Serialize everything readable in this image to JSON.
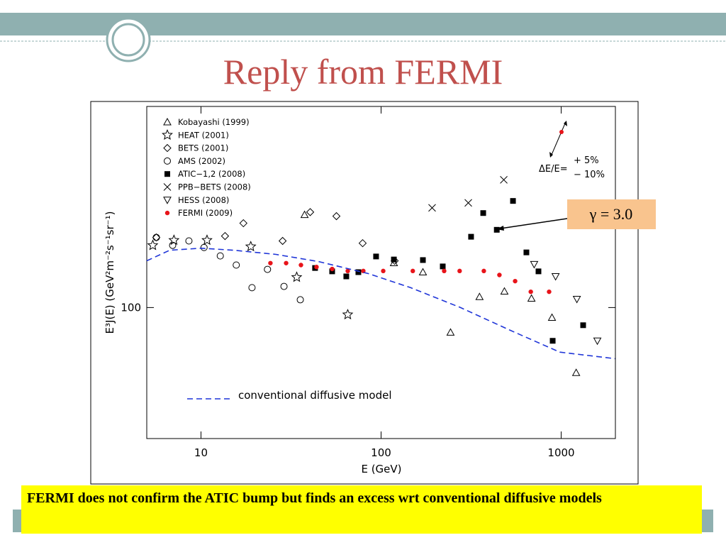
{
  "title": "Reply from FERMI",
  "caption": "FERMI does not confirm the ATIC bump but finds an excess wrt conventional diffusive models",
  "chart_data": {
    "type": "scatter",
    "x_label": "E (GeV)",
    "y_label": "E³J(E) (GeV²m⁻²s⁻¹sr⁻¹)",
    "x_log": true,
    "y_log": true,
    "xlim": [
      5,
      2000
    ],
    "ylim": [
      57,
      237
    ],
    "xticks": [
      10,
      100,
      1000
    ],
    "yticks": [
      100
    ],
    "legend": "upper left",
    "resolution_label": "ΔE/E=",
    "resolution_plus": "+ 5%",
    "resolution_minus": "− 10%",
    "callout": "γ = 3.0",
    "callout_color": "#f9c48e",
    "series": [
      {
        "name": "Kobayashi (1999)",
        "marker": "triangle",
        "color": "#000000",
        "x": [
          37.6,
          117.8,
          170.7,
          243,
          352,
          484,
          684,
          889,
          1211
        ],
        "values": [
          148.9,
          121.1,
          116.4,
          89.9,
          104.7,
          107.2,
          104.0,
          95.8,
          75.6
        ]
      },
      {
        "name": "HEAT (2001)",
        "marker": "star",
        "color": "#000000",
        "x": [
          5.4,
          7.08,
          10.8,
          18.9,
          34.0,
          65.3
        ],
        "values": [
          130.6,
          133.5,
          133.5,
          129.9,
          113.9,
          97.0
        ]
      },
      {
        "name": "BETS (2001)",
        "marker": "diamond",
        "color": "#000000",
        "x": [
          5.65,
          13.6,
          17.2,
          28.4,
          40.4,
          56.5,
          79.0,
          119
        ],
        "values": [
          135.1,
          135.9,
          143.6,
          133.1,
          150.6,
          148,
          131.8,
          122.2
        ]
      },
      {
        "name": "AMS (2002)",
        "marker": "circle",
        "color": "#000000",
        "x": [
          5.65,
          6.96,
          8.57,
          10.4,
          12.8,
          15.7,
          19.2,
          23.4,
          28.9,
          35.6
        ],
        "values": [
          135.1,
          130.6,
          133.1,
          129.4,
          124.8,
          120,
          108.9,
          117.8,
          109.5,
          103.4
        ]
      },
      {
        "name": "ATIC−1,2 (2008)",
        "marker": "square",
        "color": "#000000",
        "x": [
          43.0,
          53.5,
          64.1,
          74.8,
          93.8,
          117.8,
          170.7,
          220,
          316,
          369,
          439,
          540,
          641,
          748,
          897,
          1324
        ],
        "values": [
          118.5,
          116.8,
          114.3,
          116.4,
          124.5,
          122.9,
          122.6,
          119.3,
          135.5,
          150,
          139.6,
          158,
          126.7,
          116.8,
          86.7,
          92.7
        ]
      },
      {
        "name": "PPB−BETS (2008)",
        "marker": "cross",
        "color": "#000000",
        "x": [
          192,
          305,
          480
        ],
        "values": [
          153.4,
          156.7,
          173
        ]
      },
      {
        "name": "HESS (2008)",
        "marker": "down-triangle",
        "color": "#000000",
        "x": [
          708,
          931,
          1222,
          1588
        ],
        "values": [
          120.4,
          114.3,
          103.7,
          86.7
        ]
      },
      {
        "name": "FERMI (2009)",
        "marker": "dot",
        "color": "#e8141a",
        "x": [
          24.3,
          29.7,
          35.9,
          43.8,
          53.5,
          65.3,
          79.7,
          102.8,
          150,
          224,
          273,
          372,
          454,
          555,
          678,
          857
        ],
        "values": [
          121,
          121,
          120,
          119,
          118,
          117,
          117,
          117,
          117,
          117,
          117,
          117,
          115,
          112,
          107,
          107
        ]
      },
      {
        "name": "conventional diffusive model",
        "marker": "dashed-line",
        "color": "#1f35d8",
        "x": [
          5,
          6.71,
          10,
          15.2,
          26.1,
          45.0,
          84.9,
          146,
          276,
          521,
          982,
          1991
        ],
        "values": [
          122.2,
          127.9,
          129,
          127.9,
          125.6,
          121.8,
          115.7,
          108.9,
          100,
          90.7,
          82.6,
          80.3
        ]
      }
    ]
  }
}
